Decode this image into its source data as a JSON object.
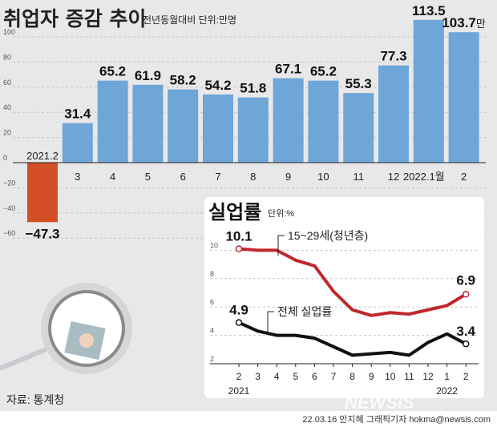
{
  "footer": {
    "source": "자료: 통계청",
    "credit": "22.03.16 안지혜 그래픽기자 hokma@newsis.com",
    "watermark": "NEWSIS"
  },
  "colors": {
    "background": "#e8e8e8",
    "bar_positive": "#6fa6d8",
    "bar_negative": "#d44f26",
    "youth_line": "#c0282d",
    "total_line": "#111111"
  },
  "chart_data": [
    {
      "type": "bar",
      "title": "취업자 증감 추이",
      "subtitle": "전년동월대비 단위:만명",
      "unit_suffix": "만",
      "categories": [
        "2021.2",
        "3",
        "4",
        "5",
        "6",
        "7",
        "8",
        "9",
        "10",
        "11",
        "12",
        "2022.1월",
        "2"
      ],
      "values": [
        -47.3,
        31.4,
        65.2,
        61.9,
        58.2,
        54.2,
        51.8,
        67.1,
        65.2,
        55.3,
        77.3,
        113.5,
        103.7
      ],
      "value_labels": [
        "−47.3",
        "31.4",
        "65.2",
        "61.9",
        "58.2",
        "54.2",
        "51.8",
        "67.1",
        "65.2",
        "55.3",
        "77.3",
        "113.5",
        "103.7"
      ],
      "yticks": [
        -60,
        -40,
        -20,
        0,
        20,
        40,
        60,
        80,
        100
      ],
      "ytick_labels": [
        "−60",
        "−40",
        "−20",
        "0",
        "20",
        "40",
        "60",
        "80",
        "100"
      ],
      "ylim": [
        -60,
        100
      ],
      "grid": true
    },
    {
      "type": "line",
      "title": "실업률",
      "subtitle": "단위:%",
      "x_labels": [
        "2",
        "3",
        "4",
        "5",
        "6",
        "7",
        "8",
        "9",
        "10",
        "11",
        "12",
        "1",
        "2"
      ],
      "year_labels": [
        "2021",
        "2022"
      ],
      "yticks": [
        2,
        4,
        6,
        8,
        10
      ],
      "ylim": [
        2,
        10
      ],
      "grid": true,
      "series": [
        {
          "name": "15~29세(청년층)",
          "values": [
            10.1,
            10.0,
            10.0,
            9.3,
            8.9,
            7.1,
            5.8,
            5.4,
            5.6,
            5.5,
            5.8,
            6.1,
            6.9
          ],
          "end_labels": [
            "10.1",
            "6.9"
          ]
        },
        {
          "name": "전체 실업률",
          "values": [
            4.9,
            4.3,
            4.0,
            4.0,
            3.8,
            3.2,
            2.6,
            2.7,
            2.8,
            2.6,
            3.5,
            4.1,
            3.4
          ],
          "end_labels": [
            "4.9",
            "3.4"
          ]
        }
      ]
    }
  ]
}
